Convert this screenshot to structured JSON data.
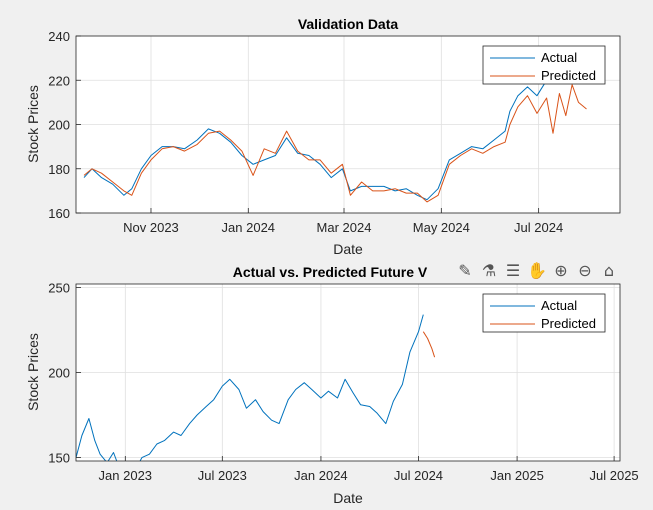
{
  "toolbar": {
    "icons": [
      "brush-icon",
      "data-tip-icon",
      "legend-icon",
      "pan-icon",
      "zoom-in-icon",
      "zoom-out-icon",
      "home-icon"
    ]
  },
  "chart_data": [
    {
      "type": "line",
      "title": "Validation Data",
      "xlabel": "Date",
      "ylabel": "Stock Prices",
      "xlim": [
        "2023-09-15",
        "2024-08-21"
      ],
      "ylim": [
        160,
        240
      ],
      "yticks": [
        160,
        180,
        200,
        220,
        240
      ],
      "xticks": [
        {
          "date": "2023-11-01",
          "label": "Nov 2023"
        },
        {
          "date": "2024-01-01",
          "label": "Jan 2024"
        },
        {
          "date": "2024-03-01",
          "label": "Mar 2024"
        },
        {
          "date": "2024-05-01",
          "label": "May 2024"
        },
        {
          "date": "2024-07-01",
          "label": "Jul 2024"
        }
      ],
      "grid": true,
      "legend": "top-right",
      "series": [
        {
          "name": "Actual",
          "color": "#0072BD",
          "x": [
            "2023-09-20",
            "2023-09-25",
            "2023-10-01",
            "2023-10-08",
            "2023-10-15",
            "2023-10-20",
            "2023-10-26",
            "2023-11-01",
            "2023-11-08",
            "2023-11-15",
            "2023-11-22",
            "2023-11-30",
            "2023-12-07",
            "2023-12-14",
            "2023-12-21",
            "2023-12-28",
            "2024-01-04",
            "2024-01-11",
            "2024-01-18",
            "2024-01-25",
            "2024-02-01",
            "2024-02-08",
            "2024-02-15",
            "2024-02-22",
            "2024-02-29",
            "2024-03-05",
            "2024-03-12",
            "2024-03-19",
            "2024-03-26",
            "2024-04-02",
            "2024-04-09",
            "2024-04-16",
            "2024-04-22",
            "2024-04-29",
            "2024-05-06",
            "2024-05-13",
            "2024-05-20",
            "2024-05-27",
            "2024-06-03",
            "2024-06-10",
            "2024-06-13",
            "2024-06-18",
            "2024-06-24",
            "2024-06-30",
            "2024-07-06",
            "2024-07-10"
          ],
          "y": [
            176,
            180,
            176,
            173,
            168,
            171,
            180,
            186,
            190,
            190,
            189,
            193,
            198,
            196,
            192,
            186,
            182,
            184,
            186,
            194,
            187,
            186,
            182,
            176,
            180,
            170,
            172,
            172,
            172,
            170,
            171,
            168,
            166,
            171,
            184,
            187,
            190,
            189,
            193,
            197,
            206,
            213,
            217,
            213,
            220,
            224
          ]
        },
        {
          "name": "Predicted",
          "color": "#D95319",
          "x": [
            "2023-09-20",
            "2023-09-25",
            "2023-10-01",
            "2023-10-08",
            "2023-10-15",
            "2023-10-20",
            "2023-10-26",
            "2023-11-01",
            "2023-11-08",
            "2023-11-15",
            "2023-11-22",
            "2023-11-30",
            "2023-12-07",
            "2023-12-14",
            "2023-12-21",
            "2023-12-28",
            "2024-01-04",
            "2024-01-11",
            "2024-01-18",
            "2024-01-25",
            "2024-02-01",
            "2024-02-08",
            "2024-02-15",
            "2024-02-22",
            "2024-02-29",
            "2024-03-05",
            "2024-03-12",
            "2024-03-19",
            "2024-03-26",
            "2024-04-02",
            "2024-04-09",
            "2024-04-16",
            "2024-04-22",
            "2024-04-29",
            "2024-05-06",
            "2024-05-13",
            "2024-05-20",
            "2024-05-27",
            "2024-06-03",
            "2024-06-10",
            "2024-06-13",
            "2024-06-18",
            "2024-06-24",
            "2024-06-30",
            "2024-07-06",
            "2024-07-10",
            "2024-07-14",
            "2024-07-18",
            "2024-07-22",
            "2024-07-26",
            "2024-07-31"
          ],
          "y": [
            177,
            180,
            178,
            174,
            170,
            168,
            178,
            184,
            189,
            190,
            188,
            191,
            196,
            197,
            193,
            188,
            177,
            189,
            187,
            197,
            188,
            184,
            184,
            178,
            182,
            168,
            174,
            170,
            170,
            171,
            169,
            169,
            165,
            168,
            182,
            186,
            189,
            187,
            190,
            192,
            200,
            208,
            213,
            205,
            212,
            196,
            214,
            204,
            218,
            210,
            207
          ]
        }
      ]
    },
    {
      "type": "line",
      "title": "Actual vs. Predicted Future V",
      "xlabel": "Date",
      "ylabel": "Stock Prices",
      "xlim": [
        "2022-10-01",
        "2025-07-12"
      ],
      "ylim": [
        148,
        252
      ],
      "yticks": [
        150,
        200,
        250
      ],
      "xticks": [
        {
          "date": "2023-01-01",
          "label": "Jan 2023"
        },
        {
          "date": "2023-07-01",
          "label": "Jul 2023"
        },
        {
          "date": "2024-01-01",
          "label": "Jan 2024"
        },
        {
          "date": "2024-07-01",
          "label": "Jul 2024"
        },
        {
          "date": "2025-01-01",
          "label": "Jan 2025"
        },
        {
          "date": "2025-07-01",
          "label": "Jul 2025"
        }
      ],
      "grid": true,
      "legend": "top-right",
      "series": [
        {
          "name": "Actual",
          "color": "#0072BD",
          "x": [
            "2022-10-01",
            "2022-10-12",
            "2022-10-25",
            "2022-11-05",
            "2022-11-15",
            "2022-11-28",
            "2022-12-10",
            "2022-12-22",
            "2023-01-03",
            "2023-01-15",
            "2023-02-01",
            "2023-02-15",
            "2023-03-01",
            "2023-03-15",
            "2023-04-01",
            "2023-04-15",
            "2023-05-01",
            "2023-05-15",
            "2023-06-01",
            "2023-06-15",
            "2023-07-01",
            "2023-07-15",
            "2023-08-01",
            "2023-08-15",
            "2023-09-01",
            "2023-09-15",
            "2023-10-01",
            "2023-10-15",
            "2023-11-01",
            "2023-11-15",
            "2023-12-01",
            "2023-12-15",
            "2024-01-01",
            "2024-01-15",
            "2024-02-01",
            "2024-02-15",
            "2024-03-01",
            "2024-03-15",
            "2024-04-01",
            "2024-04-15",
            "2024-05-01",
            "2024-05-15",
            "2024-06-01",
            "2024-06-15",
            "2024-07-01",
            "2024-07-10"
          ],
          "y": [
            150,
            163,
            173,
            160,
            152,
            147,
            153,
            143,
            142,
            140,
            150,
            152,
            158,
            160,
            165,
            163,
            170,
            175,
            180,
            184,
            192,
            196,
            190,
            179,
            184,
            177,
            172,
            170,
            184,
            190,
            194,
            190,
            185,
            189,
            185,
            196,
            188,
            181,
            180,
            176,
            170,
            183,
            193,
            212,
            224,
            234
          ]
        },
        {
          "name": "Predicted",
          "color": "#D95319",
          "x": [
            "2024-07-10",
            "2024-07-18",
            "2024-07-26",
            "2024-07-31"
          ],
          "y": [
            224,
            220,
            214,
            209
          ]
        }
      ]
    }
  ]
}
